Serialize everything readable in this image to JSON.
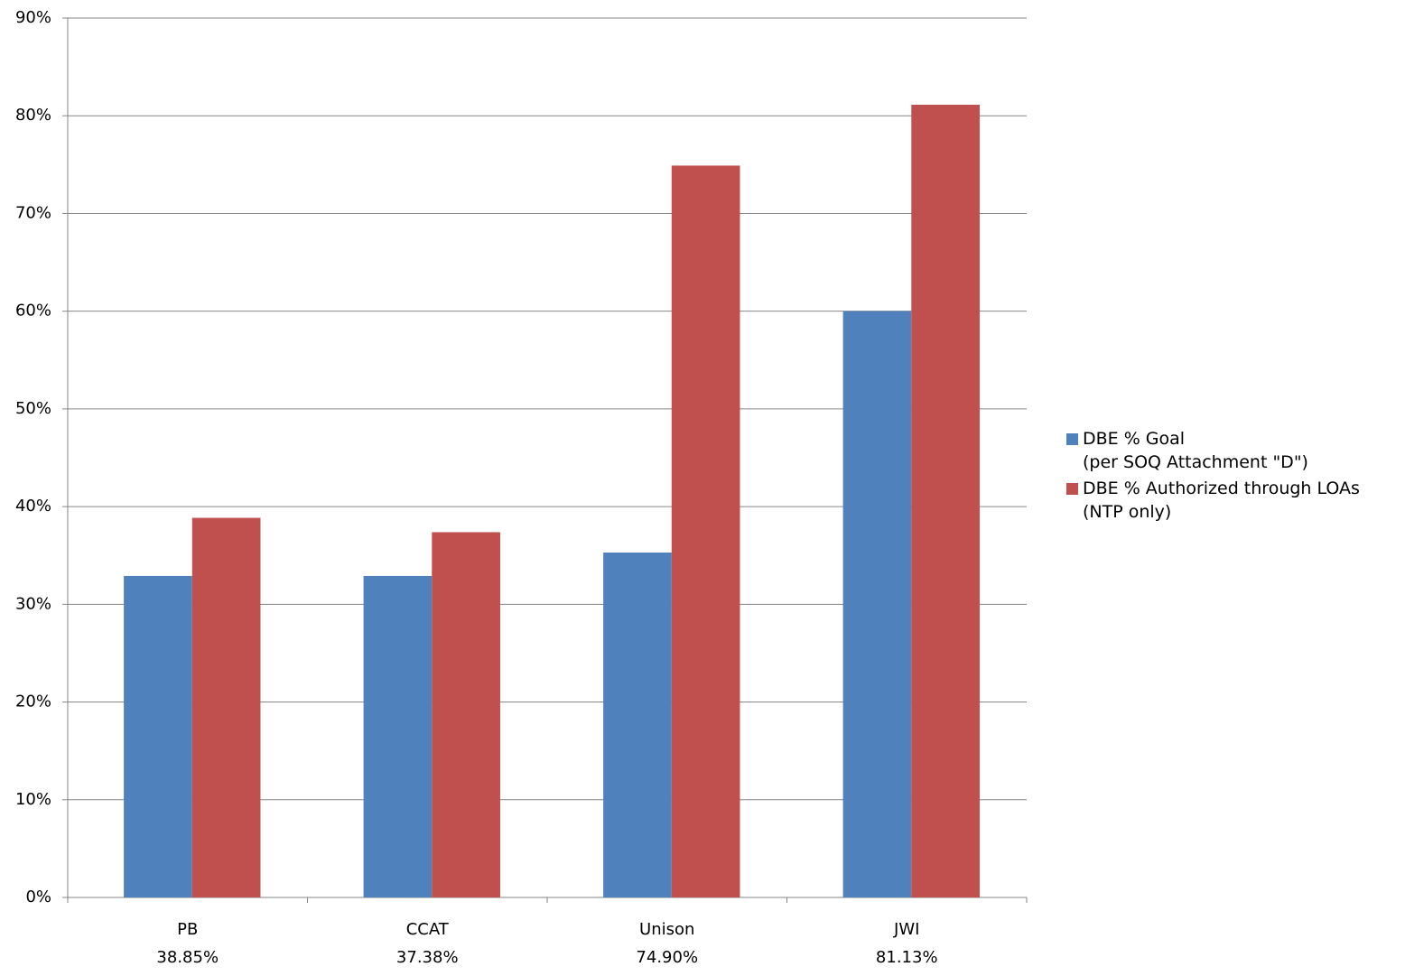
{
  "chart_data": {
    "type": "bar",
    "categories": [
      "PB",
      "CCAT",
      "Unison",
      "JWI"
    ],
    "category_notes": [
      "38.85%",
      "37.38%",
      "74.90%",
      "81.13%"
    ],
    "series": [
      {
        "name": "DBE % Goal\n(per SOQ Attachment \"D\")",
        "color": "#4f81bd",
        "values": [
          32.9,
          32.9,
          35.3,
          60
        ]
      },
      {
        "name": "DBE % Authorized through LOAs\n(NTP only)",
        "color": "#c0504d",
        "values": [
          38.85,
          37.38,
          74.9,
          81.13
        ]
      }
    ],
    "ylim": [
      0,
      90
    ],
    "yticks": [
      {
        "value": 0,
        "label": "0%"
      },
      {
        "value": 10,
        "label": "10%"
      },
      {
        "value": 20,
        "label": "20%"
      },
      {
        "value": 30,
        "label": "30%"
      },
      {
        "value": 40,
        "label": "40%"
      },
      {
        "value": 50,
        "label": "50%"
      },
      {
        "value": 60,
        "label": "60%"
      },
      {
        "value": 70,
        "label": "70%"
      },
      {
        "value": 80,
        "label": "80%"
      },
      {
        "value": 90,
        "label": "90%"
      }
    ],
    "grid": true,
    "legend": "right"
  }
}
